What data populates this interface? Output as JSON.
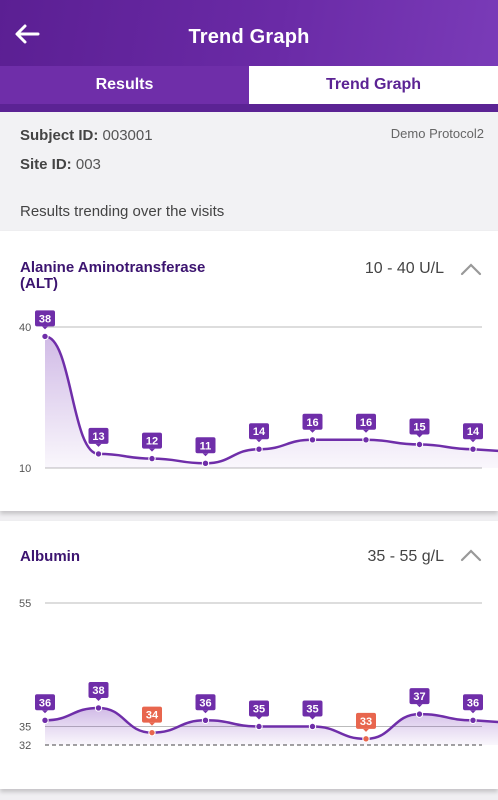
{
  "appbar": {
    "title": "Trend Graph",
    "back_icon": "arrow-left-icon"
  },
  "tabs": [
    {
      "label": "Results",
      "active": false
    },
    {
      "label": "Trend Graph",
      "active": true
    }
  ],
  "subject": {
    "subject_label": "Subject ID:",
    "subject_value": "003001",
    "site_label": "Site ID:",
    "site_value": "003",
    "protocol": "Demo Protocol2",
    "trend_text": "Results trending over the visits"
  },
  "colors": {
    "accent": "#5b2394",
    "point": "#6f2ea9",
    "out_of_range": "#e8664e"
  },
  "cards": [
    {
      "name_line1": "Alanine Aminotransferase",
      "name_line2": "(ALT)",
      "range": "10 - 40 U/L",
      "chart_data": {
        "type": "line",
        "yticks": [
          40,
          10
        ],
        "ylim": [
          10,
          40
        ],
        "values": [
          38,
          13,
          12,
          11,
          14,
          16,
          16,
          15,
          14
        ]
      }
    },
    {
      "name_line1": "Albumin",
      "name_line2": "",
      "range": "35 - 55 g/L",
      "chart_data": {
        "type": "line",
        "yticks": [
          55,
          35,
          32
        ],
        "ylim": [
          32,
          55
        ],
        "values": [
          36,
          38,
          34,
          36,
          35,
          35,
          33,
          37,
          36
        ],
        "out_of_range": [
          false,
          false,
          true,
          false,
          false,
          false,
          true,
          false,
          false
        ]
      }
    }
  ]
}
